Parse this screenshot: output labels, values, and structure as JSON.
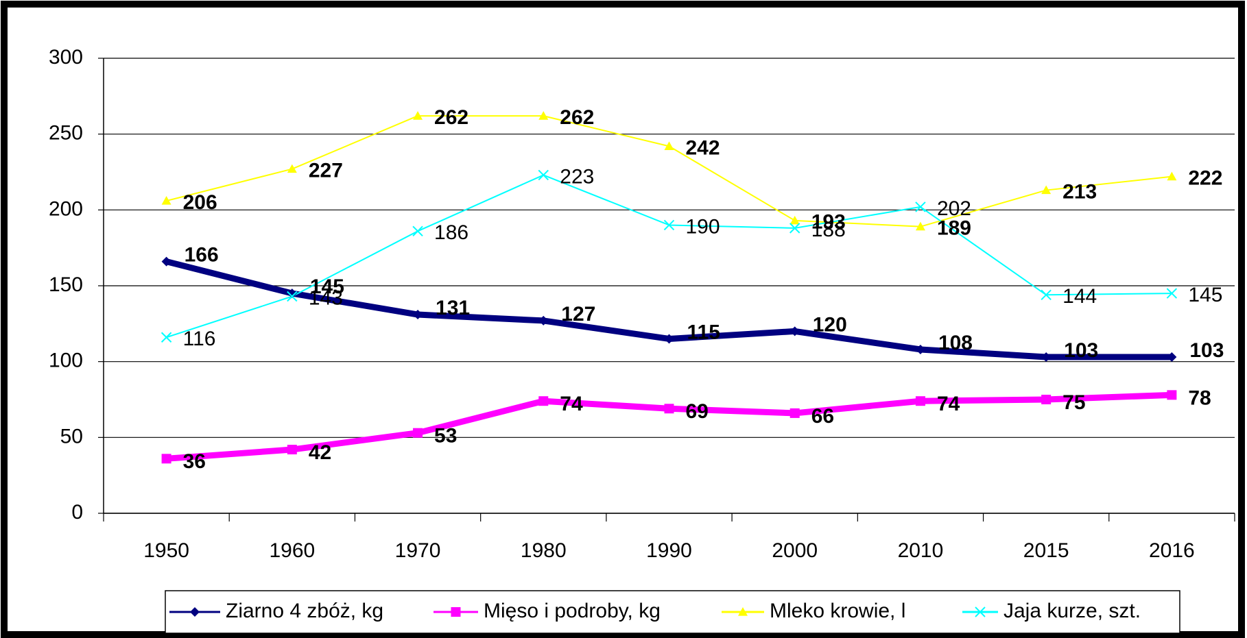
{
  "chart_data": {
    "type": "line",
    "categories": [
      "1950",
      "1960",
      "1970",
      "1980",
      "1990",
      "2000",
      "2010",
      "2015",
      "2016"
    ],
    "series": [
      {
        "name": "Ziarno 4 zbóż, kg",
        "color": "#000080",
        "values": [
          166,
          145,
          131,
          127,
          115,
          120,
          108,
          103,
          103
        ]
      },
      {
        "name": "Mięso i podroby, kg",
        "color": "#ff00ff",
        "values": [
          36,
          42,
          53,
          74,
          69,
          66,
          74,
          75,
          78
        ]
      },
      {
        "name": "Mleko krowie, l",
        "color": "#ffff00",
        "values": [
          206,
          227,
          262,
          262,
          242,
          193,
          189,
          213,
          222
        ]
      },
      {
        "name": "Jaja kurze, szt.",
        "color": "#00ffff",
        "values": [
          116,
          143,
          186,
          223,
          190,
          188,
          202,
          144,
          145
        ]
      }
    ],
    "ylim": [
      0,
      300
    ],
    "yticks": [
      0,
      50,
      100,
      150,
      200,
      250,
      300
    ],
    "grid": true,
    "legend": "bottom"
  }
}
